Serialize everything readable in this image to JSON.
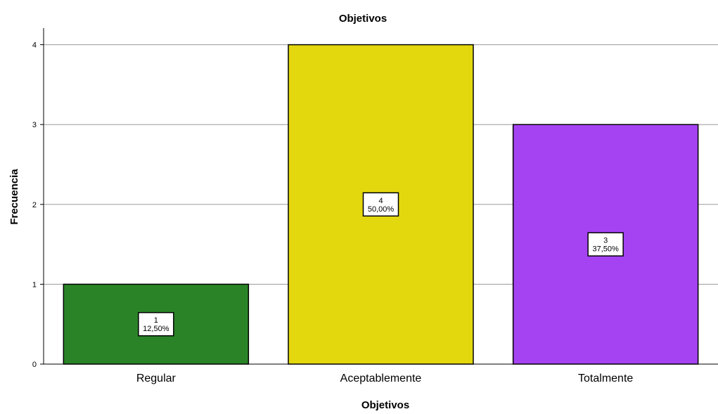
{
  "chart_data": {
    "type": "bar",
    "title": "Objetivos",
    "xlabel": "Objetivos",
    "ylabel": "Frecuencia",
    "categories": [
      "Regular",
      "Aceptablemente",
      "Totalmente"
    ],
    "values": [
      1,
      4,
      3
    ],
    "data_labels": [
      [
        "1",
        "12,50%"
      ],
      [
        "4",
        "50,00%"
      ],
      [
        "3",
        "37,50%"
      ]
    ],
    "colors": [
      "#2a8427",
      "#e3d80e",
      "#a543f3"
    ],
    "ylim": [
      0,
      4.2
    ],
    "yticks": [
      0,
      1,
      2,
      3,
      4
    ],
    "grid": true,
    "legend": "none"
  }
}
